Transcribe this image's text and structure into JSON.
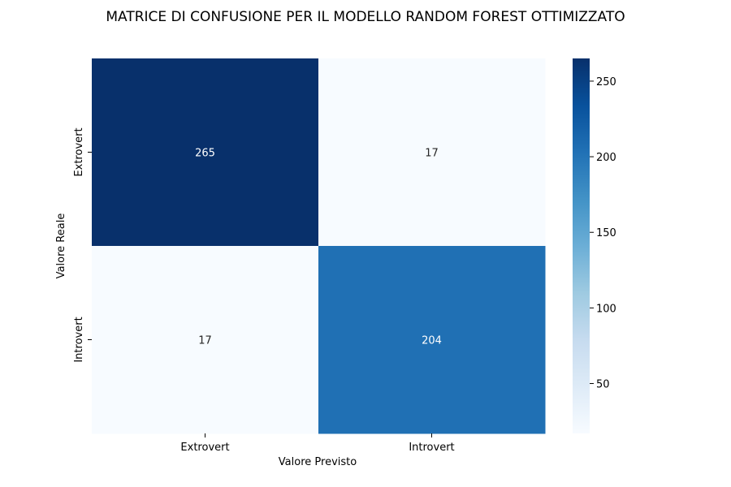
{
  "chart_data": {
    "type": "heatmap",
    "title": "MATRICE DI CONFUSIONE PER IL MODELLO RANDOM FOREST OTTIMIZZATO",
    "xlabel": "Valore Previsto",
    "ylabel": "Valore Reale",
    "x_categories": [
      "Extrovert",
      "Introvert"
    ],
    "y_categories": [
      "Extrovert",
      "Introvert"
    ],
    "values": [
      [
        265,
        17
      ],
      [
        17,
        204
      ]
    ],
    "colormap": "Blues",
    "color_range": [
      17,
      265
    ],
    "colorbar_ticks": [
      50,
      100,
      150,
      200,
      250
    ],
    "annotations": true
  }
}
